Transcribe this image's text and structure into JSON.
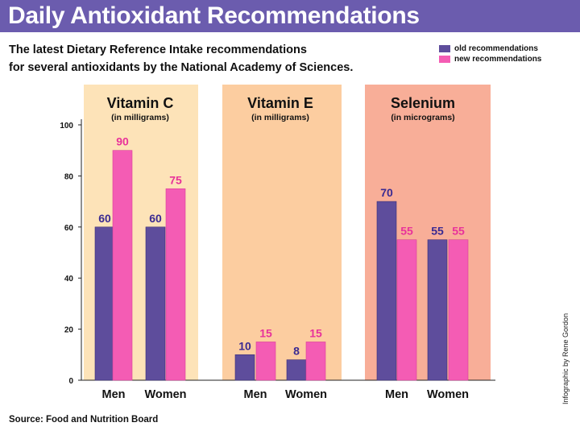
{
  "header": {
    "title": "Daily Antioxidant Recommendations",
    "subtitle": "The latest Dietary Reference Intake recommendations\nfor several antioxidants by the National Academy of Sciences."
  },
  "footer": {
    "source": "Source:  Food and Nutrition Board",
    "credit": "Infographic by Rene Gordon"
  },
  "colors": {
    "title_bg": "#6b5cae",
    "old": "#5e4d9c",
    "new": "#f45cb4",
    "old_label": "#3a2a92",
    "new_label": "#e8329a",
    "panel_c": "#fde3b8",
    "panel_e": "#fccda0",
    "panel_se": "#f8ae98"
  },
  "chart_data": {
    "type": "bar",
    "ylim": [
      0,
      100
    ],
    "yticks": [
      0,
      20,
      40,
      60,
      80,
      100
    ],
    "legend": [
      "old recommendations",
      "new recommendations"
    ],
    "legend_position": "top-right",
    "grid": false,
    "groups": [
      {
        "name": "Vitamin C",
        "unit": "(in milligrams)",
        "categories": [
          "Men",
          "Women"
        ],
        "series": [
          {
            "name": "old recommendations",
            "values": [
              60,
              60
            ]
          },
          {
            "name": "new recommendations",
            "values": [
              90,
              75
            ]
          }
        ]
      },
      {
        "name": "Vitamin E",
        "unit": "(in milligrams)",
        "categories": [
          "Men",
          "Women"
        ],
        "series": [
          {
            "name": "old recommendations",
            "values": [
              10,
              8
            ]
          },
          {
            "name": "new recommendations",
            "values": [
              15,
              15
            ]
          }
        ]
      },
      {
        "name": "Selenium",
        "unit": "(in micrograms)",
        "categories": [
          "Men",
          "Women"
        ],
        "series": [
          {
            "name": "old recommendations",
            "values": [
              70,
              55
            ]
          },
          {
            "name": "new recommendations",
            "values": [
              55,
              55
            ]
          }
        ]
      }
    ]
  }
}
